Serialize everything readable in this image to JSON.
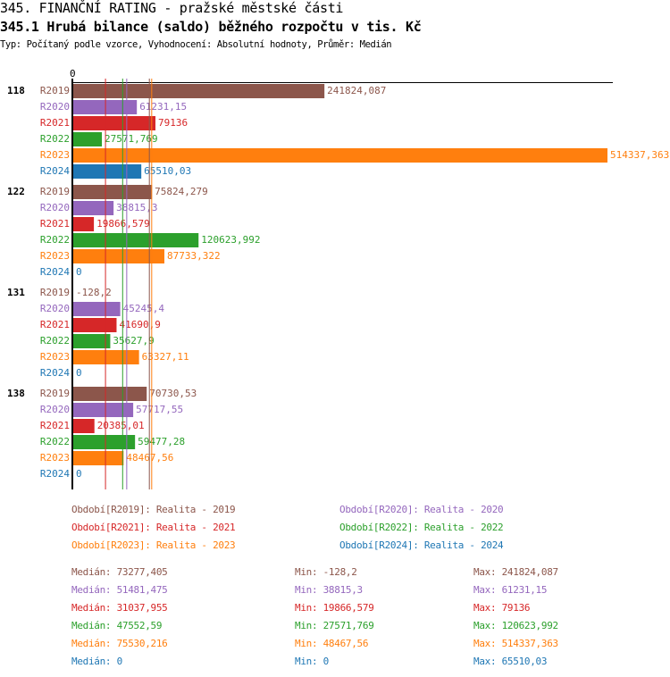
{
  "header": {
    "title": "345. FINANČNÍ RATING - pražské městské části",
    "subtitle": "345.1 Hrubá bilance (saldo) běžného rozpočtu v tis. Kč",
    "type_line": "Typ: Počítaný podle vzorce, Vyhodnocení: Absolutní hodnoty, Průměr: Medián"
  },
  "chart_data": {
    "type": "bar",
    "orientation": "horizontal",
    "axis_zero_label": "0",
    "categories": [
      "118",
      "122",
      "131",
      "138"
    ],
    "series": [
      {
        "name": "R2019",
        "color": "#8c564b",
        "values": [
          241824.087,
          75824.279,
          -128.2,
          70730.53
        ],
        "labels": [
          "241824,087",
          "75824,279",
          "-128,2",
          "70730,53"
        ]
      },
      {
        "name": "R2020",
        "color": "#9467bd",
        "values": [
          61231.15,
          38815.3,
          45245.4,
          57717.55
        ],
        "labels": [
          "61231,15",
          "38815,3",
          "45245,4",
          "57717,55"
        ]
      },
      {
        "name": "R2021",
        "color": "#d62728",
        "values": [
          79136,
          19866.579,
          41690.9,
          20385.01
        ],
        "labels": [
          "79136",
          "19866,579",
          "41690,9",
          "20385,01"
        ]
      },
      {
        "name": "R2022",
        "color": "#2ca02c",
        "values": [
          27571.769,
          120623.992,
          35627.9,
          59477.28
        ],
        "labels": [
          "27571,769",
          "120623,992",
          "35627,9",
          "59477,28"
        ]
      },
      {
        "name": "R2023",
        "color": "#ff7f0e",
        "values": [
          514337.363,
          87733.322,
          63327.11,
          48467.56
        ],
        "labels": [
          "514337,363",
          "87733,322",
          "63327,11",
          "48467,56"
        ]
      },
      {
        "name": "R2024",
        "color": "#1f77b4",
        "values": [
          65510.03,
          0,
          0,
          0
        ],
        "labels": [
          "65510,03",
          "0",
          "0",
          "0"
        ]
      }
    ],
    "xlim": [
      0,
      514337.363
    ],
    "legend": [
      "Období[R2019]: Realita - 2019",
      "Období[R2020]: Realita - 2020",
      "Období[R2021]: Realita - 2021",
      "Období[R2022]: Realita - 2022",
      "Období[R2023]: Realita - 2023",
      "Období[R2024]: Realita - 2024"
    ],
    "stats": [
      {
        "median": "Medián: 73277,405",
        "min": "Min: -128,2",
        "max": "Max: 241824,087",
        "median_value": 73277.405
      },
      {
        "median": "Medián: 51481,475",
        "min": "Min: 38815,3",
        "max": "Max: 61231,15",
        "median_value": 51481.475
      },
      {
        "median": "Medián: 31037,955",
        "min": "Min: 19866,579",
        "max": "Max: 79136",
        "median_value": 31037.955
      },
      {
        "median": "Medián: 47552,59",
        "min": "Min: 27571,769",
        "max": "Max: 120623,992",
        "median_value": 47552.59
      },
      {
        "median": "Medián: 75530,216",
        "min": "Min: 48467,56",
        "max": "Max: 514337,363",
        "median_value": 75530.216
      },
      {
        "median": "Medián: 0",
        "min": "Min: 0",
        "max": "Max: 65510,03",
        "median_value": 0
      }
    ]
  }
}
